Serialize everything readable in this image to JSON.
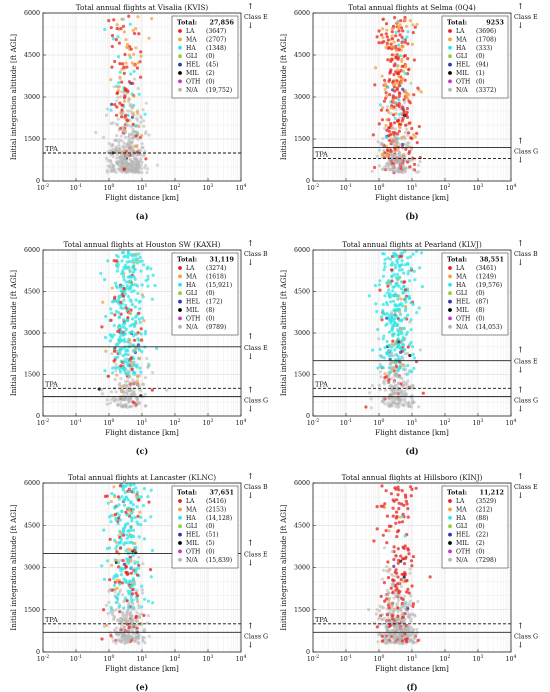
{
  "figure": {
    "ylabel": "Initial integration altitude [ft AGL]",
    "xlabel": "Flight distance [km]"
  },
  "categories": [
    {
      "code": "LA",
      "color": "#e8231f"
    },
    {
      "code": "MA",
      "color": "#f4a340"
    },
    {
      "code": "HA",
      "color": "#2ee6e6"
    },
    {
      "code": "GLI",
      "color": "#8fd23a"
    },
    {
      "code": "HEL",
      "color": "#2b3aa8"
    },
    {
      "code": "MIL",
      "color": "#000000"
    },
    {
      "code": "OTH",
      "color": "#c437c9"
    },
    {
      "code": "N/A",
      "color": "#b5b5b5"
    }
  ],
  "chart_data": [
    {
      "type": "scatter",
      "panel": "(a)",
      "title": "Total annual flights at Visalia (KVIS)",
      "total_label": "Total:",
      "total": "27,856",
      "counts": [
        "(3647)",
        "(2707)",
        "(1348)",
        "(0)",
        "(45)",
        "(2)",
        "(0)",
        "(19,752)"
      ],
      "xlabel": "Flight distance [km]",
      "ylabel": "Initial integration altitude [ft AGL]",
      "xscale": "log",
      "xlim": [
        0.01,
        10000
      ],
      "ylim": [
        0,
        6000
      ],
      "yticks": [
        0,
        1500,
        3000,
        4500,
        6000
      ],
      "xtick_labels": [
        "10^-2",
        "10^-1",
        "10^0",
        "10^1",
        "10^2",
        "10^3",
        "10^4"
      ],
      "tpa_altitude": 1000,
      "class_e_floor": null,
      "class_g_ceiling": null,
      "class_labels": [
        "Class E"
      ],
      "legend": "top-right"
    },
    {
      "type": "scatter",
      "panel": "(b)",
      "title": "Total annual flights at Selma (0Q4)",
      "total_label": "Total:",
      "total": "9253",
      "counts": [
        "(3696)",
        "(1708)",
        "(333)",
        "(0)",
        "(94)",
        "(1)",
        "(0)",
        "(3372)"
      ],
      "xlabel": "Flight distance [km]",
      "ylabel": "Initial integration altitude [ft AGL]",
      "xscale": "log",
      "xlim": [
        0.01,
        10000
      ],
      "ylim": [
        0,
        6000
      ],
      "yticks": [
        0,
        1500,
        3000,
        4500,
        6000
      ],
      "xtick_labels": [
        "10^-2",
        "10^-1",
        "10^0",
        "10^1",
        "10^2",
        "10^3",
        "10^4"
      ],
      "tpa_altitude": 800,
      "class_e_floor": 1200,
      "class_g_ceiling": 1200,
      "class_labels": [
        "Class E",
        "Class G"
      ],
      "legend": "top-right"
    },
    {
      "type": "scatter",
      "panel": "(c)",
      "title": "Total annual flights at Houston SW (KAXH)",
      "total_label": "Total:",
      "total": "31,119",
      "counts": [
        "(3274)",
        "(1618)",
        "(15,921)",
        "(0)",
        "(172)",
        "(8)",
        "(0)",
        "(9789)"
      ],
      "xlabel": "Flight distance [km]",
      "ylabel": "Initial integration altitude [ft AGL]",
      "xscale": "log",
      "xlim": [
        0.01,
        10000
      ],
      "ylim": [
        0,
        6000
      ],
      "yticks": [
        0,
        1500,
        3000,
        4500,
        6000
      ],
      "xtick_labels": [
        "10^-2",
        "10^-1",
        "10^0",
        "10^1",
        "10^2",
        "10^3",
        "10^4"
      ],
      "tpa_altitude": 1000,
      "class_e_floor": 2500,
      "class_g_ceiling": 700,
      "class_labels": [
        "Class B",
        "Class E",
        "Class G"
      ],
      "legend": "top-right"
    },
    {
      "type": "scatter",
      "panel": "(d)",
      "title": "Total annual flights at Pearland (KLVJ)",
      "total_label": "Total:",
      "total": "38,551",
      "counts": [
        "(3461)",
        "(1249)",
        "(19,576)",
        "(0)",
        "(87)",
        "(8)",
        "(0)",
        "(14,053)"
      ],
      "xlabel": "Flight distance [km]",
      "ylabel": "Initial integration altitude [ft AGL]",
      "xscale": "log",
      "xlim": [
        0.01,
        10000
      ],
      "ylim": [
        0,
        6000
      ],
      "yticks": [
        0,
        1500,
        3000,
        4500,
        6000
      ],
      "xtick_labels": [
        "10^-2",
        "10^-1",
        "10^0",
        "10^1",
        "10^2",
        "10^3",
        "10^4"
      ],
      "tpa_altitude": 1000,
      "class_e_floor": 2000,
      "class_g_ceiling": 700,
      "class_labels": [
        "Class B",
        "Class E",
        "Class G"
      ],
      "legend": "top-right"
    },
    {
      "type": "scatter",
      "panel": "(e)",
      "title": "Total annual flights at Lancaster (KLNC)",
      "total_label": "Total:",
      "total": "37,651",
      "counts": [
        "(5416)",
        "(2153)",
        "(14,128)",
        "(0)",
        "(51)",
        "(5)",
        "(0)",
        "(15,839)"
      ],
      "xlabel": "Flight distance [km]",
      "ylabel": "Initial integration altitude [ft AGL]",
      "xscale": "log",
      "xlim": [
        0.01,
        10000
      ],
      "ylim": [
        0,
        6000
      ],
      "yticks": [
        0,
        1500,
        3000,
        4500,
        6000
      ],
      "xtick_labels": [
        "10^-2",
        "10^-1",
        "10^0",
        "10^1",
        "10^2",
        "10^3",
        "10^4"
      ],
      "tpa_altitude": 1000,
      "class_e_floor": 3500,
      "class_g_ceiling": 700,
      "class_labels": [
        "Class B",
        "Class E",
        "Class G"
      ],
      "legend": "top-right"
    },
    {
      "type": "scatter",
      "panel": "(f)",
      "title": "Total annual flights at Hillsboro (KINJ)",
      "total_label": "Total:",
      "total": "11,212",
      "counts": [
        "(3529)",
        "(212)",
        "(88)",
        "(0)",
        "(22)",
        "(2)",
        "(0)",
        "(7298)"
      ],
      "xlabel": "Flight distance [km]",
      "ylabel": "Initial integration altitude [ft AGL]",
      "xscale": "log",
      "xlim": [
        0.01,
        10000
      ],
      "ylim": [
        0,
        6000
      ],
      "yticks": [
        0,
        1500,
        3000,
        4500,
        6000
      ],
      "xtick_labels": [
        "10^-2",
        "10^-1",
        "10^0",
        "10^1",
        "10^2",
        "10^3",
        "10^4"
      ],
      "tpa_altitude": 1000,
      "class_e_floor": 700,
      "class_g_ceiling": 700,
      "class_labels": [
        "Class E",
        "Class G"
      ],
      "legend": "top-right"
    }
  ]
}
